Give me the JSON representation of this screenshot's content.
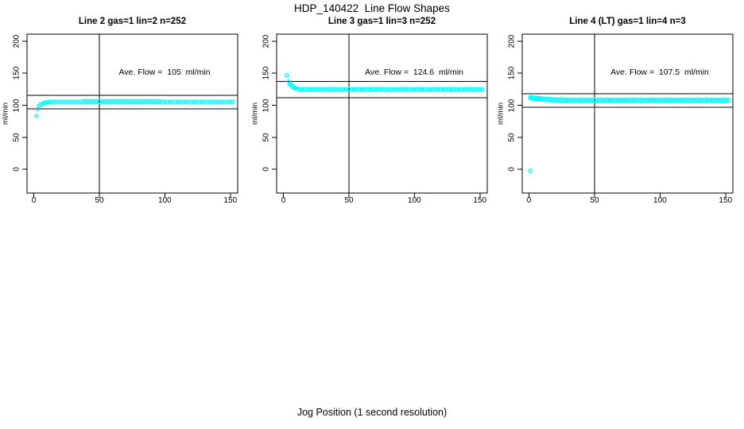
{
  "figure": {
    "title": "HDP_140422  Line Flow Shapes",
    "xlabel": "Jog Position (1 second resolution)",
    "background": "#ffffff",
    "point_color": "#00ffff",
    "line_color": "#000000"
  },
  "chart_data": [
    {
      "type": "scatter",
      "title": "Line 2 gas=1 lin=2 n=252",
      "ylabel": "ml/min",
      "annotation": "Ave. Flow =  105  ml/min",
      "ave_flow_ml_min": 105,
      "n": 252,
      "xlim": [
        -5.2,
        155.6
      ],
      "ylim": [
        -37,
        211
      ],
      "xticks": [
        0,
        50,
        100,
        150
      ],
      "yticks": [
        0,
        50,
        100,
        150,
        200
      ],
      "vline_x": 50,
      "hlines": [
        94.5,
        115.5
      ],
      "grid": false,
      "series": [
        {
          "name": "flow-trace",
          "points": [
            [
              2,
              83.5
            ],
            [
              3,
              94
            ],
            [
              4,
              99
            ],
            [
              5,
              101
            ],
            [
              6.5,
              102.4
            ],
            [
              7.5,
              103.3
            ],
            [
              8.5,
              104
            ],
            [
              9.5,
              104.6
            ],
            [
              11,
              105
            ],
            [
              12.5,
              105.2
            ]
          ],
          "runs": [
            {
              "x0": 14,
              "x1": 152,
              "step": 2,
              "y": 105.5
            },
            {
              "x0": 38,
              "x1": 96,
              "step": 2,
              "y": 106.2
            }
          ]
        }
      ]
    },
    {
      "type": "scatter",
      "title": "Line 3 gas=1 lin=3 n=252",
      "ylabel": "ml/min",
      "annotation": "Ave. Flow =  124.6  ml/min",
      "ave_flow_ml_min": 124.6,
      "n": 252,
      "xlim": [
        -5.2,
        155.6
      ],
      "ylim": [
        -37,
        211
      ],
      "xticks": [
        0,
        50,
        100,
        150
      ],
      "yticks": [
        0,
        50,
        100,
        150,
        200
      ],
      "vline_x": 50,
      "hlines": [
        112.1,
        137.1
      ],
      "grid": false,
      "series": [
        {
          "name": "flow-trace",
          "points": [
            [
              2.5,
              147
            ],
            [
              4,
              137
            ],
            [
              5,
              133.5
            ],
            [
              6,
              131
            ],
            [
              7,
              129.2
            ],
            [
              8,
              127.8
            ],
            [
              9,
              126.8
            ],
            [
              10,
              126
            ],
            [
              11,
              125.5
            ],
            [
              12.5,
              125.1
            ]
          ],
          "runs": [
            {
              "x0": 14,
              "x1": 152,
              "step": 2,
              "y": 124.8
            }
          ]
        }
      ]
    },
    {
      "type": "scatter",
      "title": "Line 4 (LT) gas=1 lin=4 n=3",
      "ylabel": "ml/min",
      "annotation": "Ave. Flow =  107.5  ml/min",
      "ave_flow_ml_min": 107.5,
      "n": 3,
      "xlim": [
        -5.2,
        155.6
      ],
      "ylim": [
        -37,
        211
      ],
      "xticks": [
        0,
        50,
        100,
        150
      ],
      "yticks": [
        0,
        50,
        100,
        150,
        200
      ],
      "vline_x": 50,
      "hlines": [
        96.8,
        118.3
      ],
      "grid": false,
      "series": [
        {
          "name": "flow-trace-run1",
          "points": [
            [
              1,
              112.6
            ],
            [
              2,
              112.3
            ],
            [
              3,
              112
            ],
            [
              4,
              111.7
            ],
            [
              5,
              111.4
            ],
            [
              6,
              111.2
            ],
            [
              7,
              111
            ],
            [
              8,
              110.8
            ],
            [
              9,
              110.6
            ],
            [
              10,
              110.4
            ],
            [
              12,
              110.1
            ],
            [
              14,
              109.8
            ],
            [
              16,
              109.5
            ],
            [
              18,
              109.3
            ],
            [
              20,
              109.1
            ],
            [
              22,
              108.9
            ],
            [
              24,
              108.8
            ],
            [
              26,
              108.7
            ],
            [
              28,
              108.6
            ]
          ],
          "runs": [
            {
              "x0": 30,
              "x1": 152,
              "step": 2,
              "y": 108.4
            }
          ]
        },
        {
          "name": "flow-trace-run2",
          "points": [
            [
              1,
              111.2
            ],
            [
              2,
              110.9
            ],
            [
              3,
              110.6
            ],
            [
              4,
              110.3
            ],
            [
              5,
              110.1
            ],
            [
              6,
              109.9
            ],
            [
              7,
              109.7
            ],
            [
              8,
              109.5
            ],
            [
              9,
              109.3
            ],
            [
              10,
              109.1
            ],
            [
              12,
              108.8
            ],
            [
              14,
              108.5
            ],
            [
              16,
              108.2
            ],
            [
              18,
              108
            ],
            [
              20,
              107.8
            ],
            [
              22,
              107.7
            ],
            [
              24,
              107.6
            ],
            [
              26,
              107.5
            ],
            [
              28,
              107.4
            ]
          ],
          "runs": [
            {
              "x0": 30,
              "x1": 152,
              "step": 2,
              "y": 107.2
            }
          ]
        },
        {
          "name": "flow-trace-run3-outlier",
          "points": [
            [
              1,
              -2
            ]
          ],
          "runs": []
        }
      ]
    }
  ]
}
